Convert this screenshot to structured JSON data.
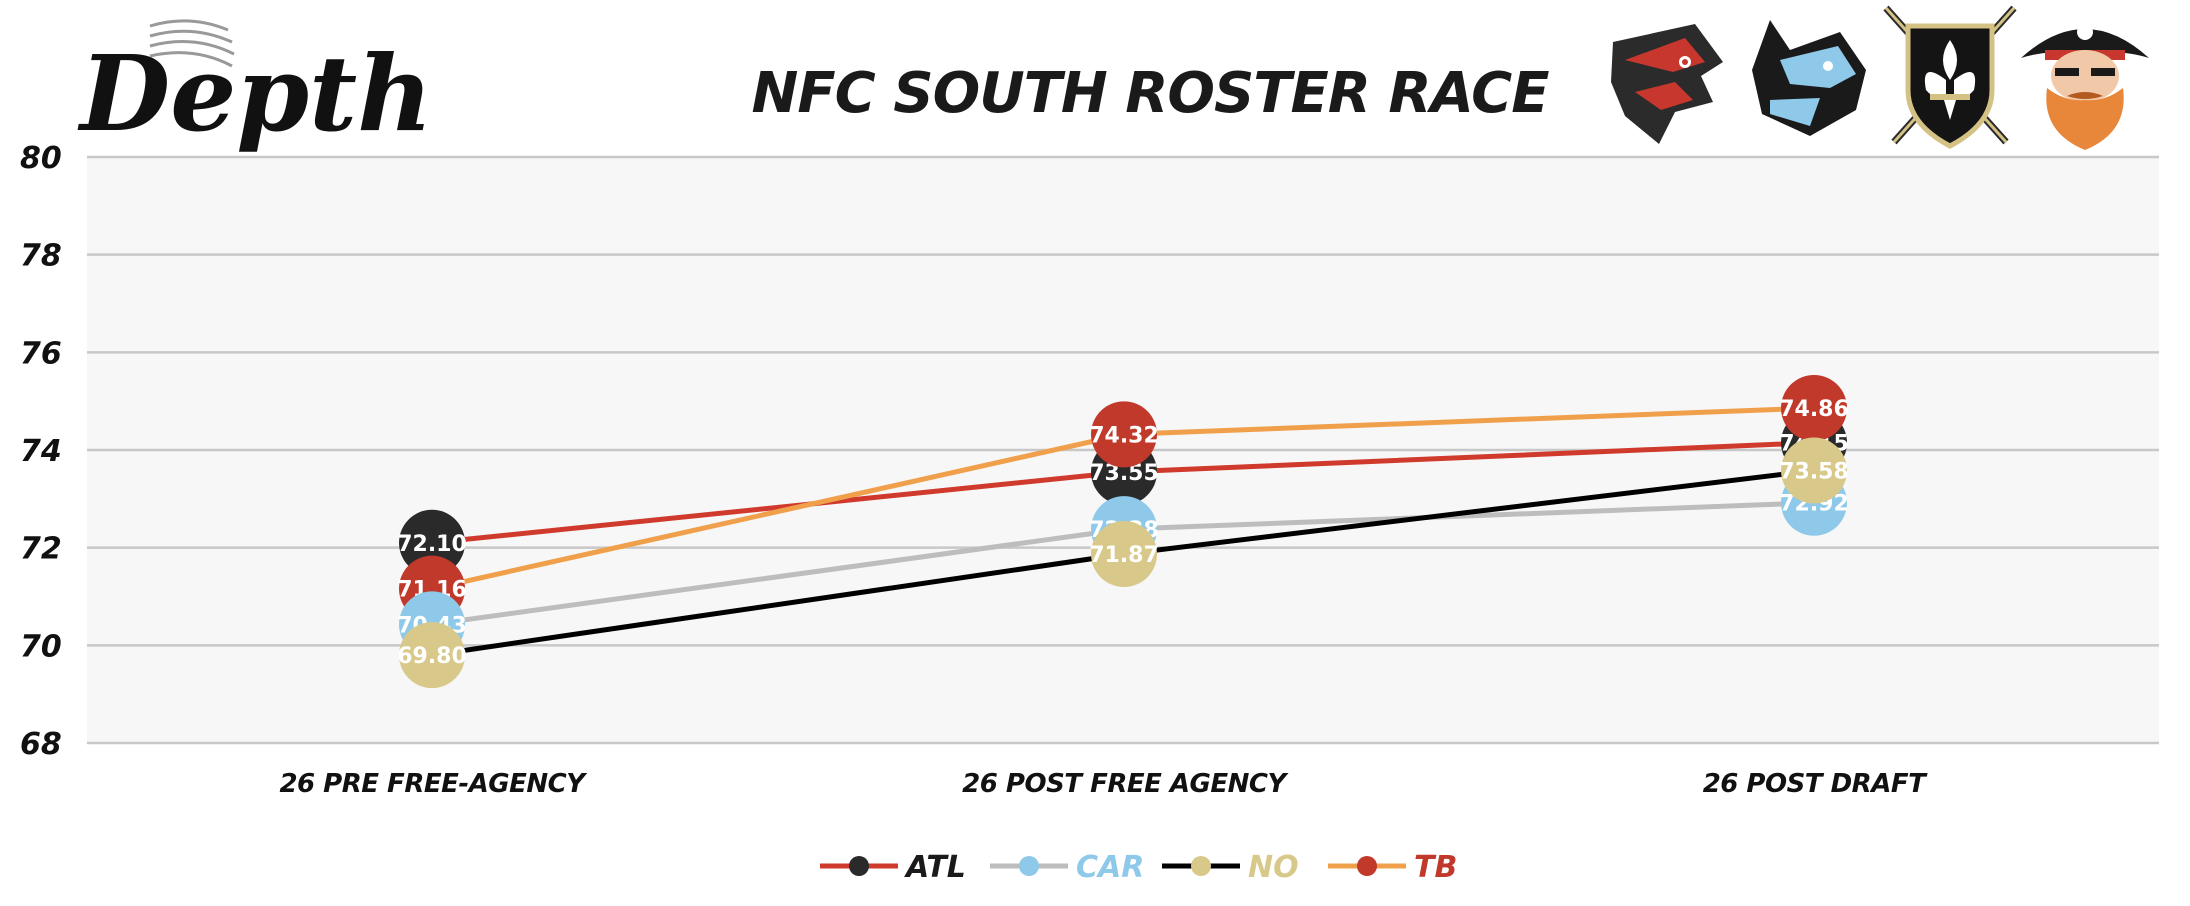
{
  "header": {
    "logo_text": "Depth",
    "title": "NFC SOUTH ROSTER RACE"
  },
  "team_logos": [
    {
      "team": "ATL",
      "icon": "falcon-head-icon",
      "primary": "#2b2b2b",
      "accent": "#c8372d"
    },
    {
      "team": "CAR",
      "icon": "panther-head-icon",
      "primary": "#1a1a1a",
      "accent": "#8ec9ea"
    },
    {
      "team": "NO",
      "icon": "fleur-de-lis-shield-icon",
      "primary": "#141414",
      "accent": "#d4c285"
    },
    {
      "team": "TB",
      "icon": "pirate-head-icon",
      "primary": "#c8372d",
      "accent": "#e8a040"
    }
  ],
  "chart_data": {
    "type": "line",
    "title": "NFC SOUTH ROSTER RACE",
    "categories": [
      "26 PRE FREE-AGENCY",
      "26 POST FREE AGENCY",
      "26 POST DRAFT"
    ],
    "ylim": [
      68,
      80
    ],
    "yticks": [
      68,
      70,
      72,
      74,
      76,
      78,
      80
    ],
    "grid": true,
    "legend_position": "bottom",
    "series": [
      {
        "name": "ATL",
        "values": [
          72.1,
          73.55,
          74.15
        ],
        "line_color": "#d03a2c",
        "marker_color": "#2a2a2a",
        "legend_text_color": "#1a1a1a"
      },
      {
        "name": "CAR",
        "values": [
          70.43,
          72.38,
          72.92
        ],
        "line_color": "#bdbdbd",
        "marker_color": "#8ec9ea",
        "legend_text_color": "#8ec9ea"
      },
      {
        "name": "NO",
        "values": [
          69.8,
          71.87,
          73.58
        ],
        "line_color": "#000000",
        "marker_color": "#d8c98a",
        "legend_text_color": "#d8c98a"
      },
      {
        "name": "TB",
        "values": [
          71.16,
          74.32,
          74.86
        ],
        "line_color": "#f0a04b",
        "marker_color": "#c0392b",
        "legend_text_color": "#c0392b"
      }
    ]
  }
}
